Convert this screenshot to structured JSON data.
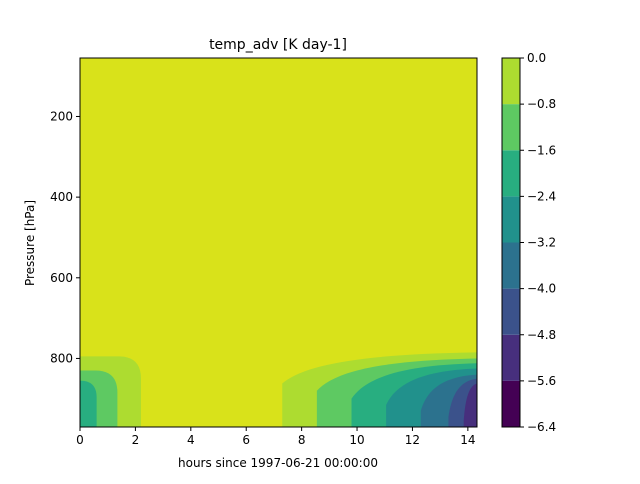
{
  "chart_data": {
    "type": "contourf",
    "title": "temp_adv [K day-1]",
    "xlabel": "hours since 1997-06-21 00:00:00",
    "ylabel": "Pressure [hPa]",
    "xlim": [
      0,
      14.33
    ],
    "ylim": [
      970,
      55
    ],
    "y_inverted": true,
    "x_ticks": [
      0,
      2,
      4,
      6,
      8,
      10,
      12,
      14
    ],
    "y_ticks": [
      200,
      400,
      600,
      800
    ],
    "colorbar": {
      "levels": [
        -6.4,
        -5.6,
        -4.8,
        -4.0,
        -3.2,
        -2.4,
        -1.6,
        -0.8,
        0.0
      ],
      "tick_labels": [
        "0.0",
        "−0.8",
        "−1.6",
        "−2.4",
        "−3.2",
        "−4.0",
        "−4.8",
        "−5.6",
        "−6.4"
      ],
      "colors": [
        "#440154",
        "#472f7d",
        "#3b528b",
        "#2c728e",
        "#21918c",
        "#28ae80",
        "#5ec962",
        "#addc30",
        "#d9e21a"
      ]
    },
    "background_color": "#d9e21a",
    "regions": {
      "left_early": {
        "x_range": [
          0,
          2.2
        ],
        "bands": [
          {
            "level_index": 7,
            "x_edge": 2.2,
            "top_pressure": 795
          },
          {
            "level_index": 6,
            "x_edge": 1.35,
            "top_pressure": 830
          },
          {
            "level_index": 5,
            "x_edge": 0.6,
            "top_pressure": 855
          }
        ]
      },
      "right_late": {
        "bands": [
          {
            "level_index": 7,
            "x_start": 7.3,
            "top_pressure_start": 862,
            "top_pressure_end": 785
          },
          {
            "level_index": 6,
            "x_start": 8.55,
            "top_pressure_start": 880,
            "top_pressure_end": 800
          },
          {
            "level_index": 5,
            "x_start": 9.8,
            "top_pressure_start": 900,
            "top_pressure_end": 812
          },
          {
            "level_index": 4,
            "x_start": 11.05,
            "top_pressure_start": 915,
            "top_pressure_end": 825
          },
          {
            "level_index": 3,
            "x_start": 12.3,
            "top_pressure_start": 930,
            "top_pressure_end": 840
          },
          {
            "level_index": 2,
            "x_start": 13.3,
            "top_pressure_start": 945,
            "top_pressure_end": 850
          },
          {
            "level_index": 1,
            "x_start": 13.85,
            "top_pressure_start": 955,
            "top_pressure_end": 862
          }
        ]
      }
    }
  }
}
